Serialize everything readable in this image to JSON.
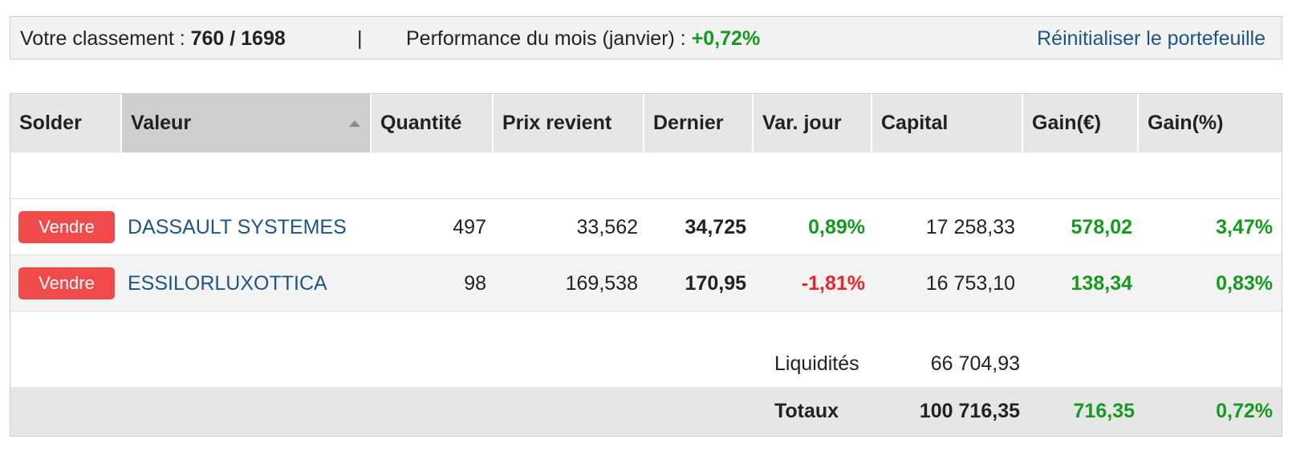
{
  "summary": {
    "rank_label": "Votre classement : ",
    "rank_value": "760 / 1698",
    "separator": "|",
    "performance_label": "Performance du mois (janvier) : ",
    "performance_value": "+0,72%",
    "reset_link": "Réinitialiser le portefeuille"
  },
  "table": {
    "headers": {
      "solder": "Solder",
      "valeur": "Valeur",
      "quantite": "Quantité",
      "prix_revient": "Prix revient",
      "dernier": "Dernier",
      "var_jour": "Var. jour",
      "capital": "Capital",
      "gain_eur": "Gain(€)",
      "gain_pct": "Gain(%)"
    },
    "sorted_column": "Valeur",
    "sort_direction": "ascending",
    "rows": [
      {
        "button": "Vendre",
        "valeur": "DASSAULT SYSTEMES",
        "quantite": "497",
        "prix_revient": "33,562",
        "dernier": "34,725",
        "var_jour": "0,89%",
        "capital": "17 258,33",
        "gain_eur": "578,02",
        "gain_pct": "3,47%"
      },
      {
        "button": "Vendre",
        "valeur": "ESSILORLUXOTTICA",
        "quantite": "98",
        "prix_revient": "169,538",
        "dernier": "170,95",
        "var_jour": "-1,81%",
        "capital": "16 753,10",
        "gain_eur": "138,34",
        "gain_pct": "0,83%"
      }
    ],
    "liquidites": {
      "label": "Liquidités",
      "value": "66 704,93"
    },
    "totaux": {
      "label": "Totaux",
      "capital": "100 716,35",
      "gain_eur": "716,35",
      "gain_pct": "0,72%"
    }
  },
  "colors": {
    "positive": "#159a1f",
    "negative": "#e8262b",
    "link": "#1d5586",
    "sell_button": "#f04a4a",
    "header_bg": "#e6e6e6"
  },
  "icons": {
    "sort": "sort-ascending-icon"
  }
}
